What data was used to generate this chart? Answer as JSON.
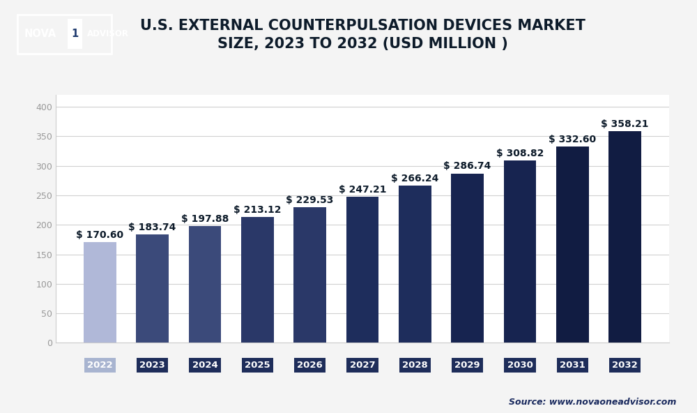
{
  "title": "U.S. EXTERNAL COUNTERPULSATION DEVICES MARKET\nSIZE, 2023 TO 2032 (USD MILLION )",
  "categories": [
    "2022",
    "2023",
    "2024",
    "2025",
    "2026",
    "2027",
    "2028",
    "2029",
    "2030",
    "2031",
    "2032"
  ],
  "values": [
    170.6,
    183.74,
    197.88,
    213.12,
    229.53,
    247.21,
    266.24,
    286.74,
    308.82,
    332.6,
    358.21
  ],
  "bar_colors": [
    "#b0b8d8",
    "#3b4a7a",
    "#3b4a7a",
    "#2a3868",
    "#2a3868",
    "#1e2d5c",
    "#1e2d5c",
    "#172450",
    "#172450",
    "#111c42",
    "#111c42"
  ],
  "tick_bg_color_2022": "#a8b4d0",
  "tick_bg_dark": "#1e2d5a",
  "ylim": [
    0,
    420
  ],
  "yticks": [
    0,
    50,
    100,
    150,
    200,
    250,
    300,
    350,
    400
  ],
  "source_text": "Source: www.novaoneadvisor.com",
  "bg_color": "#f4f4f4",
  "plot_bg_color": "#ffffff",
  "title_color": "#0d1b2a",
  "grid_color": "#d0d0d0",
  "label_color": "#0d1b2a",
  "tick_label_color": "#ffffff",
  "title_fontsize": 15,
  "label_fontsize": 10,
  "tick_fontsize": 9.5
}
